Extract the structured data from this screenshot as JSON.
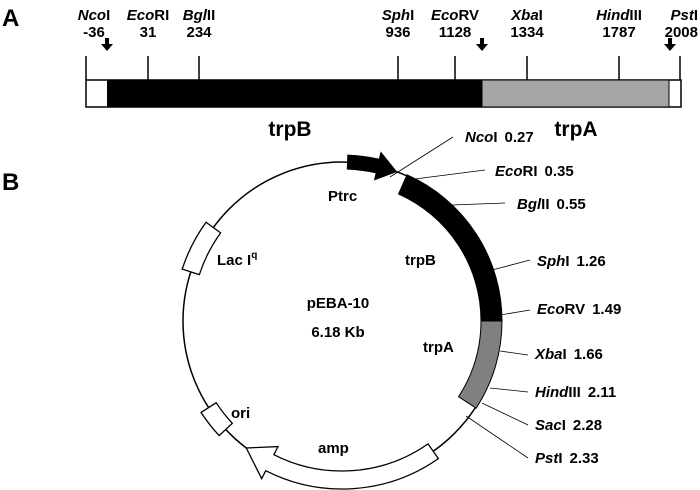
{
  "panel_a": {
    "label": "A",
    "sites": [
      {
        "italic": "Nco",
        "suffix": "I",
        "position": "-36"
      },
      {
        "italic": "Eco",
        "suffix": "RI",
        "position": "31"
      },
      {
        "italic": "Bgl",
        "suffix": "II",
        "position": "234"
      },
      {
        "italic": "Sph",
        "suffix": "I",
        "position": "936"
      },
      {
        "italic": "Eco",
        "suffix": "RV",
        "position": "1128"
      },
      {
        "italic": "Xba",
        "suffix": "I",
        "position": "1334"
      },
      {
        "italic": "Hind",
        "suffix": "III",
        "position": "1787"
      },
      {
        "italic": "Pst",
        "suffix": "I",
        "position": "2008"
      }
    ],
    "genes": [
      {
        "name": "trpB",
        "color": "#000000"
      },
      {
        "name": "trpA",
        "color": "#a6a6a6"
      }
    ]
  },
  "panel_b": {
    "label": "B",
    "plasmid_name": "pEBA-10",
    "plasmid_size": "6.18 Kb",
    "features": {
      "ptrc": "Ptrc",
      "laciq": "Lac I",
      "laciq_sup": "q",
      "ori": "ori",
      "amp": "amp",
      "trpB": "trpB",
      "trpA": "trpA"
    },
    "colors": {
      "trpB": "#000000",
      "trpA": "#808080"
    },
    "sites": [
      {
        "italic": "Nco",
        "suffix": "I",
        "position": "0.27"
      },
      {
        "italic": "Eco",
        "suffix": "RI",
        "position": "0.35"
      },
      {
        "italic": "Bgl",
        "suffix": "II",
        "position": "0.55"
      },
      {
        "italic": "Sph",
        "suffix": "I",
        "position": "1.26"
      },
      {
        "italic": "Eco",
        "suffix": "RV",
        "position": "1.49"
      },
      {
        "italic": "Xba",
        "suffix": "I",
        "position": "1.66"
      },
      {
        "italic": "Hind",
        "suffix": "III",
        "position": "2.11"
      },
      {
        "italic": "Sac",
        "suffix": "I",
        "position": "2.28"
      },
      {
        "italic": "Pst",
        "suffix": "I",
        "position": "2.33"
      }
    ]
  }
}
